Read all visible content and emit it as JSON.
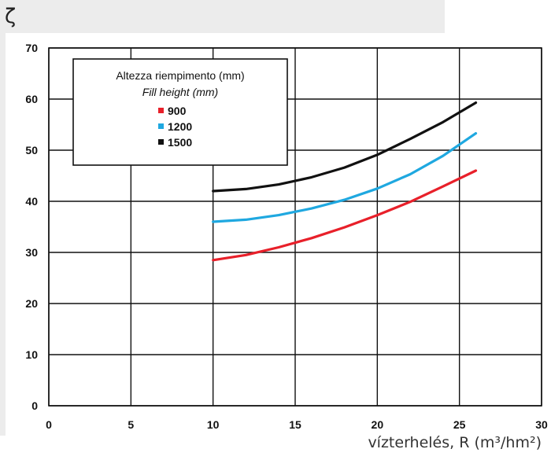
{
  "header": {
    "symbol": "ζ"
  },
  "chart_data": {
    "type": "line",
    "xlabel": "vízterhelés, R (m³/hm²)",
    "ylabel": "ζ",
    "xlim": [
      0,
      30
    ],
    "ylim": [
      0,
      70
    ],
    "x_ticks": [
      0,
      5,
      10,
      15,
      20,
      25,
      30
    ],
    "y_ticks": [
      0,
      10,
      20,
      30,
      40,
      50,
      60,
      70
    ],
    "grid": true,
    "legend": {
      "title": "Altezza riempimento (mm)",
      "subtitle": "Fill height (mm)",
      "placement": "top-left"
    },
    "series": [
      {
        "name": "900",
        "color": "#e8202a",
        "x": [
          10,
          12,
          14,
          16,
          18,
          20,
          22,
          24,
          26
        ],
        "y": [
          28.5,
          29.5,
          31,
          32.8,
          34.9,
          37.3,
          39.9,
          42.9,
          46
        ]
      },
      {
        "name": "1200",
        "color": "#1fa8e0",
        "x": [
          10,
          12,
          14,
          16,
          18,
          20,
          22,
          24,
          26
        ],
        "y": [
          36,
          36.4,
          37.3,
          38.6,
          40.3,
          42.5,
          45.3,
          48.9,
          53.3
        ]
      },
      {
        "name": "1500",
        "color": "#111111",
        "x": [
          10,
          12,
          14,
          16,
          18,
          20,
          22,
          24,
          26
        ],
        "y": [
          42,
          42.4,
          43.3,
          44.7,
          46.6,
          49.1,
          52.2,
          55.5,
          59.3
        ]
      }
    ]
  }
}
